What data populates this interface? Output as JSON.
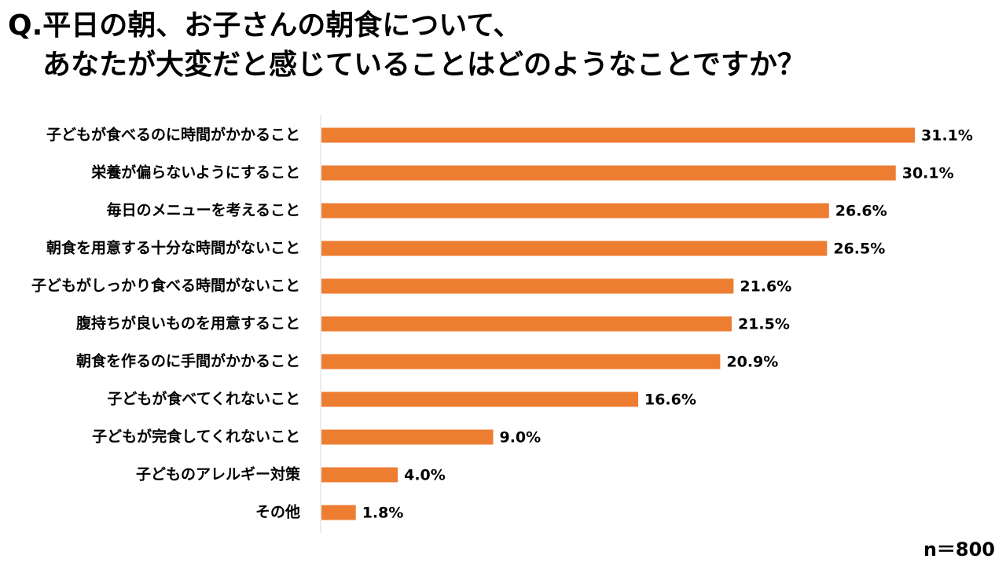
{
  "title_line1": "Q.平日の朝、お子さんの朝食について、",
  "title_line2": "あなたが大変だと感じていることはどのようなことですか？",
  "sample_size": "n＝800",
  "colors": {
    "bar": "#ED7D31",
    "axis": "#D9D9D9"
  },
  "chart_data": {
    "type": "bar",
    "orientation": "horizontal",
    "title": "Q.平日の朝、お子さんの朝食について、あなたが大変だと感じていることはどのようなことですか？",
    "categories": [
      "子どもが食べるのに時間がかかること",
      "栄養が偏らないようにすること",
      "毎日のメニューを考えること",
      "朝食を用意する十分な時間がないこと",
      "子どもがしっかり食べる時間がないこと",
      "腹持ちが良いものを用意すること",
      "朝食を作るのに手間がかかること",
      "子どもが食べてくれないこと",
      "子どもが完食してくれないこと",
      "子どものアレルギー対策",
      "その他"
    ],
    "values": [
      31.1,
      30.1,
      26.6,
      26.5,
      21.6,
      21.5,
      20.9,
      16.6,
      9.0,
      4.0,
      1.8
    ],
    "value_labels": [
      "31.1%",
      "30.1%",
      "26.6%",
      "26.5%",
      "21.6%",
      "21.5%",
      "20.9%",
      "16.6%",
      "9.0%",
      "4.0%",
      "1.8%"
    ],
    "xlim": [
      0,
      31.1
    ],
    "grid": false,
    "legend": "none"
  }
}
